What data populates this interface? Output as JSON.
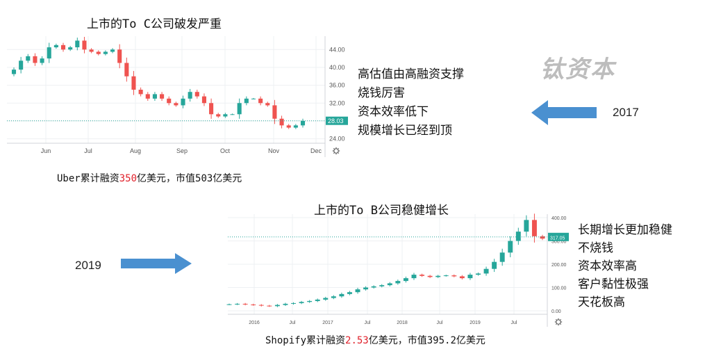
{
  "brand": "钛资本",
  "section1": {
    "title": "上市的To C公司破发严重",
    "caption_parts": [
      "Uber累计融资",
      "350",
      "亿美元，市值503亿美元"
    ],
    "year": "2017",
    "bullets": [
      "高估值由高融资支撑",
      "烧钱厉害",
      "资本效率低下",
      "规模增长已经到顶"
    ]
  },
  "section2": {
    "title": "上市的To B公司稳健增长",
    "caption_parts": [
      "Shopify累计融资",
      "2.53",
      "亿美元，市值395.2亿美元"
    ],
    "year": "2019",
    "bullets": [
      "长期增长更加稳健",
      "不烧钱",
      "资本效率高",
      "客户黏性极强",
      "天花板高"
    ]
  },
  "colors": {
    "up": "#26a69a",
    "down": "#ef5350",
    "price_line": "#26a69a",
    "arrow": "#4a90d0",
    "highlight": "#e0202a"
  },
  "chart_data": [
    {
      "type": "candlestick",
      "x_ticks": [
        "Jun",
        "Jul",
        "Aug",
        "Sep",
        "Oct",
        "Nov",
        "Dec"
      ],
      "y_ticks": [
        "44.00",
        "40.00",
        "36.00",
        "32.00",
        "28.00",
        "24.00"
      ],
      "ylim": [
        23,
        47
      ],
      "current_price": "28.03",
      "current_value": 28.03,
      "approx_close": [
        39.5,
        41.5,
        42.5,
        41,
        42,
        44.5,
        45,
        44,
        44.5,
        46,
        44,
        43.5,
        43,
        43.5,
        44,
        41,
        38,
        35,
        34,
        33,
        34,
        33,
        32,
        31.5,
        33,
        34.5,
        33.5,
        32,
        29.5,
        29,
        29.5,
        29.5,
        32,
        33,
        33,
        32,
        31.5,
        28.5,
        27,
        26.5,
        27,
        28
      ]
    },
    {
      "type": "candlestick",
      "x_ticks": [
        "2016",
        "Jul",
        "2017",
        "Jul",
        "2018",
        "Jul",
        "2019",
        "Jul"
      ],
      "y_ticks": [
        "400.00",
        "300.00",
        "200.00",
        "100.00",
        "0.00"
      ],
      "ylim": [
        -15,
        415
      ],
      "current_price": "317.05",
      "current_value": 317.05,
      "approx_close": [
        28,
        30,
        27,
        25,
        22,
        20,
        25,
        30,
        33,
        38,
        42,
        48,
        55,
        62,
        72,
        80,
        92,
        100,
        105,
        110,
        118,
        128,
        140,
        155,
        150,
        145,
        150,
        152,
        148,
        140,
        155,
        160,
        180,
        210,
        250,
        300,
        340,
        390,
        320,
        310
      ]
    }
  ]
}
